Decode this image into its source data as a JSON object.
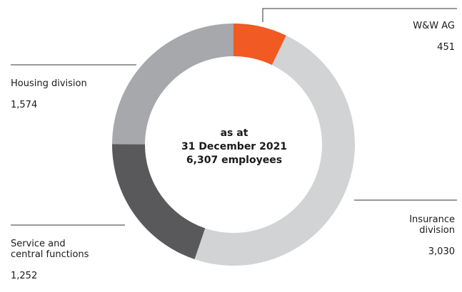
{
  "chart_data": {
    "type": "pie",
    "categories": [
      "W&W AG",
      "Insurance division",
      "Service and central functions",
      "Housing division"
    ],
    "values": [
      451,
      3030,
      1252,
      1574
    ],
    "colors": [
      "#f15a22",
      "#d2d3d5",
      "#59595b",
      "#a7a8ab"
    ],
    "center": {
      "line1": "as at",
      "line2": "31 December 2021",
      "line3": "6,307 employees"
    },
    "labels": [
      {
        "name": "W&W AG",
        "value": "451"
      },
      {
        "name": "Insurance\ndivision",
        "value": "3,030"
      },
      {
        "name": "Service and\ncentral functions",
        "value": "1,252"
      },
      {
        "name": "Housing division",
        "value": "1,574"
      }
    ]
  }
}
